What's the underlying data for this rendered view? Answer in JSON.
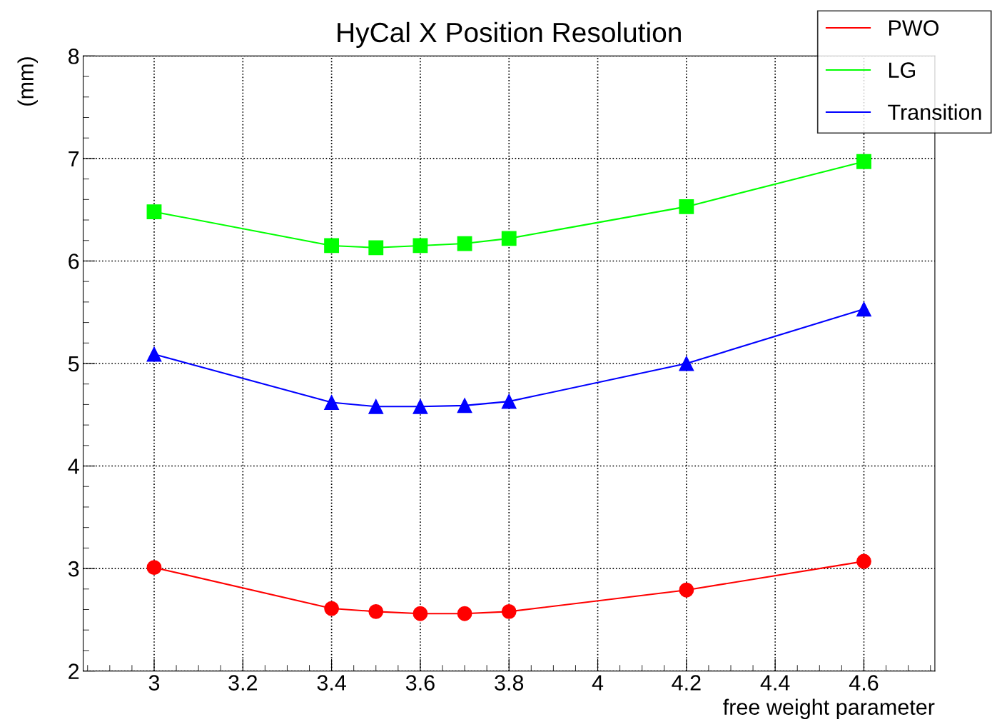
{
  "chart_data": {
    "type": "line",
    "title": "HyCal X Position Resolution",
    "xlabel": "free weight parameter",
    "ylabel": "(mm)",
    "x": [
      3,
      3.4,
      3.5,
      3.6,
      3.7,
      3.8,
      4.2,
      4.6
    ],
    "series": [
      {
        "name": "PWO",
        "color": "#ff0000",
        "marker": "circle",
        "values": [
          3.01,
          2.61,
          2.58,
          2.56,
          2.56,
          2.58,
          2.79,
          3.07
        ]
      },
      {
        "name": "LG",
        "color": "#00ff00",
        "marker": "square",
        "values": [
          6.48,
          6.15,
          6.13,
          6.15,
          6.17,
          6.22,
          6.53,
          6.97
        ]
      },
      {
        "name": "Transition",
        "color": "#0000ff",
        "marker": "triangle",
        "values": [
          5.09,
          4.62,
          4.58,
          4.58,
          4.59,
          4.63,
          5.0,
          5.53
        ]
      }
    ],
    "xlim": [
      2.84,
      4.76
    ],
    "ylim": [
      2,
      8
    ],
    "xticks": [
      3,
      3.2,
      3.4,
      3.6,
      3.8,
      4,
      4.2,
      4.4,
      4.6
    ],
    "yticks": [
      2,
      3,
      4,
      5,
      6,
      7,
      8
    ],
    "grid": true,
    "legend": "top right",
    "line_style": "solid"
  }
}
